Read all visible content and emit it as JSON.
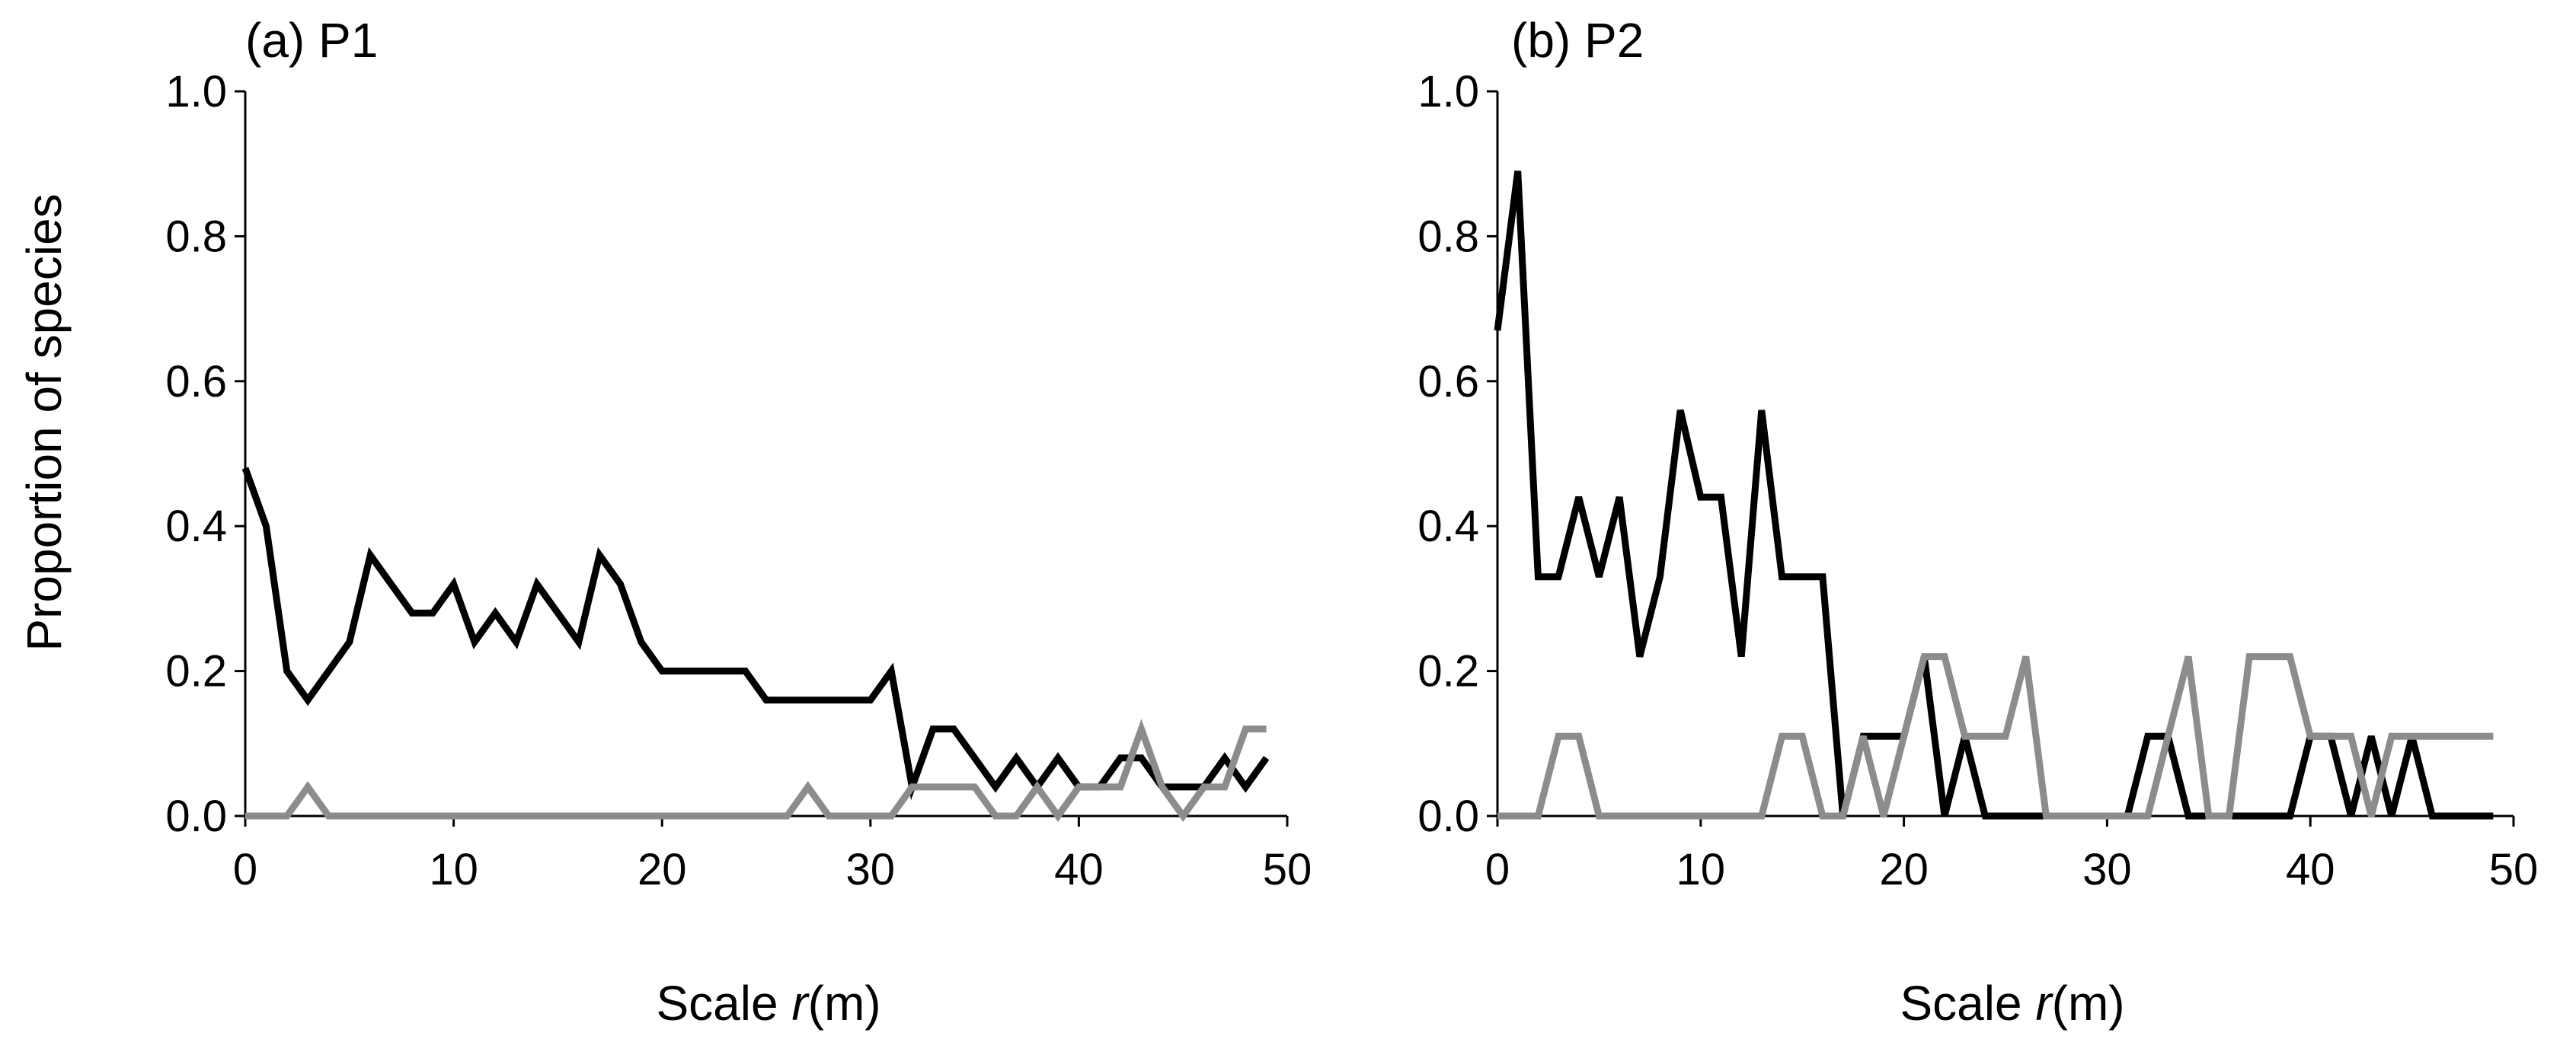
{
  "chart_data": [
    {
      "type": "line",
      "panel_label": "(a) P1",
      "xlabel": {
        "prefix": "Scale ",
        "variable": "r",
        "suffix": "(m)"
      },
      "ylabel": "Proportion of species",
      "xlim": [
        0,
        50
      ],
      "ylim": [
        0,
        1.0
      ],
      "xticks": [
        "0",
        "10",
        "20",
        "30",
        "40",
        "50"
      ],
      "yticks": [
        "0.0",
        "0.2",
        "0.4",
        "0.6",
        "0.8",
        "1.0"
      ],
      "grid": false,
      "legend": "none",
      "series": [
        {
          "color": "#000000",
          "x": [
            0,
            1,
            2,
            3,
            4,
            5,
            6,
            7,
            8,
            9,
            10,
            11,
            12,
            13,
            14,
            15,
            16,
            17,
            18,
            19,
            20,
            21,
            22,
            23,
            24,
            25,
            26,
            27,
            28,
            29,
            30,
            31,
            32,
            33,
            34,
            35,
            36,
            37,
            38,
            39,
            40,
            41,
            42,
            43,
            44,
            45,
            46,
            47,
            48,
            49
          ],
          "values": [
            0.48,
            0.4,
            0.2,
            0.16,
            0.2,
            0.24,
            0.36,
            0.32,
            0.28,
            0.28,
            0.32,
            0.24,
            0.28,
            0.24,
            0.32,
            0.28,
            0.24,
            0.36,
            0.32,
            0.24,
            0.2,
            0.2,
            0.2,
            0.2,
            0.2,
            0.16,
            0.16,
            0.16,
            0.16,
            0.16,
            0.16,
            0.2,
            0.04,
            0.12,
            0.12,
            0.08,
            0.04,
            0.08,
            0.04,
            0.08,
            0.04,
            0.04,
            0.08,
            0.08,
            0.04,
            0.04,
            0.04,
            0.08,
            0.04,
            0.08
          ]
        },
        {
          "color": "#8c8c8c",
          "x": [
            0,
            1,
            2,
            3,
            4,
            5,
            6,
            7,
            8,
            9,
            10,
            11,
            12,
            13,
            14,
            15,
            16,
            17,
            18,
            19,
            20,
            21,
            22,
            23,
            24,
            25,
            26,
            27,
            28,
            29,
            30,
            31,
            32,
            33,
            34,
            35,
            36,
            37,
            38,
            39,
            40,
            41,
            42,
            43,
            44,
            45,
            46,
            47,
            48,
            49
          ],
          "values": [
            0.0,
            0.0,
            0.0,
            0.04,
            0.0,
            0.0,
            0.0,
            0.0,
            0.0,
            0.0,
            0.0,
            0.0,
            0.0,
            0.0,
            0.0,
            0.0,
            0.0,
            0.0,
            0.0,
            0.0,
            0.0,
            0.0,
            0.0,
            0.0,
            0.0,
            0.0,
            0.0,
            0.04,
            0.0,
            0.0,
            0.0,
            0.0,
            0.04,
            0.04,
            0.04,
            0.04,
            0.0,
            0.0,
            0.04,
            0.0,
            0.04,
            0.04,
            0.04,
            0.12,
            0.04,
            0.0,
            0.04,
            0.04,
            0.12,
            0.12
          ]
        }
      ]
    },
    {
      "type": "line",
      "panel_label": "(b) P2",
      "xlabel": {
        "prefix": "Scale ",
        "variable": "r",
        "suffix": "(m)"
      },
      "ylabel": "",
      "xlim": [
        0,
        50
      ],
      "ylim": [
        0,
        1.0
      ],
      "xticks": [
        "0",
        "10",
        "20",
        "30",
        "40",
        "50"
      ],
      "yticks": [
        "0.0",
        "0.2",
        "0.4",
        "0.6",
        "0.8",
        "1.0"
      ],
      "grid": false,
      "legend": "none",
      "series": [
        {
          "color": "#000000",
          "x": [
            0,
            1,
            2,
            3,
            4,
            5,
            6,
            7,
            8,
            9,
            10,
            11,
            12,
            13,
            14,
            15,
            16,
            17,
            18,
            19,
            20,
            21,
            22,
            23,
            24,
            25,
            26,
            27,
            28,
            29,
            30,
            31,
            32,
            33,
            34,
            35,
            36,
            37,
            38,
            39,
            40,
            41,
            42,
            43,
            44,
            45,
            46,
            47,
            48,
            49
          ],
          "values": [
            0.67,
            0.89,
            0.33,
            0.33,
            0.44,
            0.33,
            0.44,
            0.22,
            0.33,
            0.56,
            0.44,
            0.44,
            0.22,
            0.56,
            0.33,
            0.33,
            0.33,
            0.0,
            0.11,
            0.11,
            0.11,
            0.22,
            0.0,
            0.11,
            0.0,
            0.0,
            0.0,
            0.0,
            0.0,
            0.0,
            0.0,
            0.0,
            0.11,
            0.11,
            0.0,
            0.0,
            0.0,
            0.0,
            0.0,
            0.0,
            0.11,
            0.11,
            0.0,
            0.11,
            0.0,
            0.11,
            0.0,
            0.0,
            0.0,
            0.0
          ]
        },
        {
          "color": "#8c8c8c",
          "x": [
            0,
            1,
            2,
            3,
            4,
            5,
            6,
            7,
            8,
            9,
            10,
            11,
            12,
            13,
            14,
            15,
            16,
            17,
            18,
            19,
            20,
            21,
            22,
            23,
            24,
            25,
            26,
            27,
            28,
            29,
            30,
            31,
            32,
            33,
            34,
            35,
            36,
            37,
            38,
            39,
            40,
            41,
            42,
            43,
            44,
            45,
            46,
            47,
            48,
            49
          ],
          "values": [
            0.0,
            0.0,
            0.0,
            0.11,
            0.11,
            0.0,
            0.0,
            0.0,
            0.0,
            0.0,
            0.0,
            0.0,
            0.0,
            0.0,
            0.11,
            0.11,
            0.0,
            0.0,
            0.11,
            0.0,
            0.11,
            0.22,
            0.22,
            0.11,
            0.11,
            0.11,
            0.22,
            0.0,
            0.0,
            0.0,
            0.0,
            0.0,
            0.0,
            0.11,
            0.22,
            0.0,
            0.0,
            0.22,
            0.22,
            0.22,
            0.11,
            0.11,
            0.11,
            0.0,
            0.11,
            0.11,
            0.11,
            0.11,
            0.11,
            0.11
          ]
        }
      ]
    }
  ]
}
